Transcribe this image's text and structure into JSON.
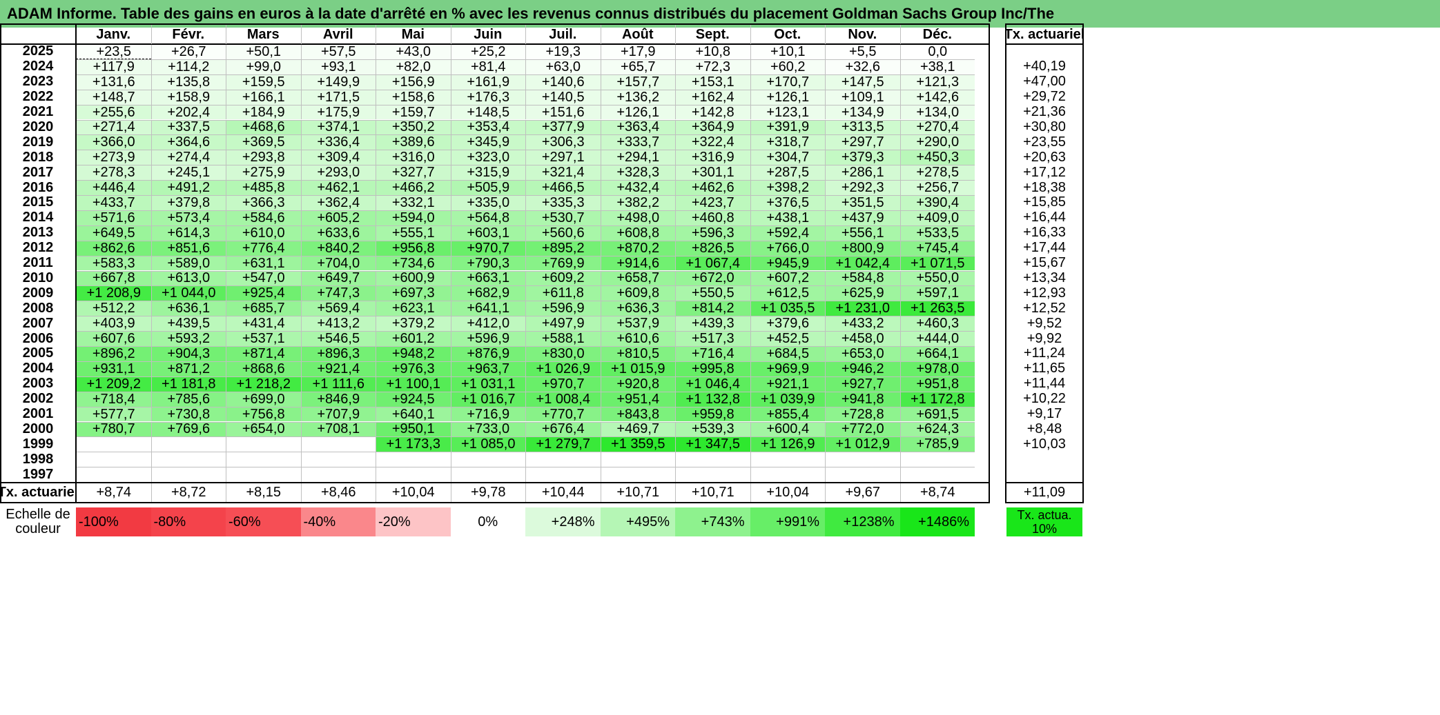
{
  "title": "ADAM Informe. Table des gains en euros à la date d'arrêté en % avec les revenus connus distribués du placement Goldman Sachs Group Inc/The",
  "months": [
    "Janv.",
    "Févr.",
    "Mars",
    "Avril",
    "Mai",
    "Juin",
    "Juil.",
    "Août",
    "Sept.",
    "Oct.",
    "Nov.",
    "Déc."
  ],
  "annual_header": "Tx. actuariel",
  "rows": [
    {
      "year": "2025",
      "values": [
        "+23,5",
        "+26,7",
        "+50,1",
        "+57,5",
        "+43,0",
        "+25,2",
        "+19,3",
        "+17,9",
        "+10,8",
        "+10,1",
        "+5,5",
        "0,0"
      ],
      "annual": ""
    },
    {
      "year": "2024",
      "values": [
        "+117,9",
        "+114,2",
        "+99,0",
        "+93,1",
        "+82,0",
        "+81,4",
        "+63,0",
        "+65,7",
        "+72,3",
        "+60,2",
        "+32,6",
        "+38,1"
      ],
      "annual": "+40,19"
    },
    {
      "year": "2023",
      "values": [
        "+131,6",
        "+135,8",
        "+159,5",
        "+149,9",
        "+156,9",
        "+161,9",
        "+140,6",
        "+157,7",
        "+153,1",
        "+170,7",
        "+147,5",
        "+121,3"
      ],
      "annual": "+47,00"
    },
    {
      "year": "2022",
      "values": [
        "+148,7",
        "+158,9",
        "+166,1",
        "+171,5",
        "+158,6",
        "+176,3",
        "+140,5",
        "+136,2",
        "+162,4",
        "+126,1",
        "+109,1",
        "+142,6"
      ],
      "annual": "+29,72"
    },
    {
      "year": "2021",
      "values": [
        "+255,6",
        "+202,4",
        "+184,9",
        "+175,9",
        "+159,7",
        "+148,5",
        "+151,6",
        "+126,1",
        "+142,8",
        "+123,1",
        "+134,9",
        "+134,0"
      ],
      "annual": "+21,36"
    },
    {
      "year": "2020",
      "values": [
        "+271,4",
        "+337,5",
        "+468,6",
        "+374,1",
        "+350,2",
        "+353,4",
        "+377,9",
        "+363,4",
        "+364,9",
        "+391,9",
        "+313,5",
        "+270,4"
      ],
      "annual": "+30,80"
    },
    {
      "year": "2019",
      "values": [
        "+366,0",
        "+364,6",
        "+369,5",
        "+336,4",
        "+389,6",
        "+345,9",
        "+306,3",
        "+333,7",
        "+322,4",
        "+318,7",
        "+297,7",
        "+290,0"
      ],
      "annual": "+23,55"
    },
    {
      "year": "2018",
      "values": [
        "+273,9",
        "+274,4",
        "+293,8",
        "+309,4",
        "+316,0",
        "+323,0",
        "+297,1",
        "+294,1",
        "+316,9",
        "+304,7",
        "+379,3",
        "+450,3"
      ],
      "annual": "+20,63"
    },
    {
      "year": "2017",
      "values": [
        "+278,3",
        "+245,1",
        "+275,9",
        "+293,0",
        "+327,7",
        "+315,9",
        "+321,4",
        "+328,3",
        "+301,1",
        "+287,5",
        "+286,1",
        "+278,5"
      ],
      "annual": "+17,12"
    },
    {
      "year": "2016",
      "values": [
        "+446,4",
        "+491,2",
        "+485,8",
        "+462,1",
        "+466,2",
        "+505,9",
        "+466,5",
        "+432,4",
        "+462,6",
        "+398,2",
        "+292,3",
        "+256,7"
      ],
      "annual": "+18,38"
    },
    {
      "year": "2015",
      "values": [
        "+433,7",
        "+379,8",
        "+366,3",
        "+362,4",
        "+332,1",
        "+335,0",
        "+335,3",
        "+382,2",
        "+423,7",
        "+376,5",
        "+351,5",
        "+390,4"
      ],
      "annual": "+15,85"
    },
    {
      "year": "2014",
      "values": [
        "+571,6",
        "+573,4",
        "+584,6",
        "+605,2",
        "+594,0",
        "+564,8",
        "+530,7",
        "+498,0",
        "+460,8",
        "+438,1",
        "+437,9",
        "+409,0"
      ],
      "annual": "+16,44"
    },
    {
      "year": "2013",
      "values": [
        "+649,5",
        "+614,3",
        "+610,0",
        "+633,6",
        "+555,1",
        "+603,1",
        "+560,6",
        "+608,8",
        "+596,3",
        "+592,4",
        "+556,1",
        "+533,5"
      ],
      "annual": "+16,33"
    },
    {
      "year": "2012",
      "values": [
        "+862,6",
        "+851,6",
        "+776,4",
        "+840,2",
        "+956,8",
        "+970,7",
        "+895,2",
        "+870,2",
        "+826,5",
        "+766,0",
        "+800,9",
        "+745,4"
      ],
      "annual": "+17,44"
    },
    {
      "year": "2011",
      "values": [
        "+583,3",
        "+589,0",
        "+631,1",
        "+704,0",
        "+734,6",
        "+790,3",
        "+769,9",
        "+914,6",
        "+1 067,4",
        "+945,9",
        "+1 042,4",
        "+1 071,5"
      ],
      "annual": "+15,67"
    },
    {
      "year": "2010",
      "values": [
        "+667,8",
        "+613,0",
        "+547,0",
        "+649,7",
        "+600,9",
        "+663,1",
        "+609,2",
        "+658,7",
        "+672,0",
        "+607,2",
        "+584,8",
        "+550,0"
      ],
      "annual": "+13,34"
    },
    {
      "year": "2009",
      "values": [
        "+1 208,9",
        "+1 044,0",
        "+925,4",
        "+747,3",
        "+697,3",
        "+682,9",
        "+611,8",
        "+609,8",
        "+550,5",
        "+612,5",
        "+625,9",
        "+597,1"
      ],
      "annual": "+12,93"
    },
    {
      "year": "2008",
      "values": [
        "+512,2",
        "+636,1",
        "+685,7",
        "+569,4",
        "+623,1",
        "+641,1",
        "+596,9",
        "+636,3",
        "+814,2",
        "+1 035,5",
        "+1 231,0",
        "+1 263,5"
      ],
      "annual": "+12,52"
    },
    {
      "year": "2007",
      "values": [
        "+403,9",
        "+439,5",
        "+431,4",
        "+413,2",
        "+379,2",
        "+412,0",
        "+497,9",
        "+537,9",
        "+439,3",
        "+379,6",
        "+433,2",
        "+460,3"
      ],
      "annual": "+9,52"
    },
    {
      "year": "2006",
      "values": [
        "+607,6",
        "+593,2",
        "+537,1",
        "+546,5",
        "+601,2",
        "+596,9",
        "+588,1",
        "+610,6",
        "+517,3",
        "+452,5",
        "+458,0",
        "+444,0"
      ],
      "annual": "+9,92"
    },
    {
      "year": "2005",
      "values": [
        "+896,2",
        "+904,3",
        "+871,4",
        "+896,3",
        "+948,2",
        "+876,9",
        "+830,0",
        "+810,5",
        "+716,4",
        "+684,5",
        "+653,0",
        "+664,1"
      ],
      "annual": "+11,24"
    },
    {
      "year": "2004",
      "values": [
        "+931,1",
        "+871,2",
        "+868,6",
        "+921,4",
        "+976,3",
        "+963,7",
        "+1 026,9",
        "+1 015,9",
        "+995,8",
        "+969,9",
        "+946,2",
        "+978,0"
      ],
      "annual": "+11,65"
    },
    {
      "year": "2003",
      "values": [
        "+1 209,2",
        "+1 181,8",
        "+1 218,2",
        "+1 111,6",
        "+1 100,1",
        "+1 031,1",
        "+970,7",
        "+920,8",
        "+1 046,4",
        "+921,1",
        "+927,7",
        "+951,8"
      ],
      "annual": "+11,44"
    },
    {
      "year": "2002",
      "values": [
        "+718,4",
        "+785,6",
        "+699,0",
        "+846,9",
        "+924,5",
        "+1 016,7",
        "+1 008,4",
        "+951,4",
        "+1 132,8",
        "+1 039,9",
        "+941,8",
        "+1 172,8"
      ],
      "annual": "+10,22"
    },
    {
      "year": "2001",
      "values": [
        "+577,7",
        "+730,8",
        "+756,8",
        "+707,9",
        "+640,1",
        "+716,9",
        "+770,7",
        "+843,8",
        "+959,8",
        "+855,4",
        "+728,8",
        "+691,5"
      ],
      "annual": "+9,17"
    },
    {
      "year": "2000",
      "values": [
        "+780,7",
        "+769,6",
        "+654,0",
        "+708,1",
        "+950,1",
        "+733,0",
        "+676,4",
        "+469,7",
        "+539,3",
        "+600,4",
        "+772,0",
        "+624,3"
      ],
      "annual": "+8,48"
    },
    {
      "year": "1999",
      "values": [
        "",
        "",
        "",
        "",
        "+1 173,3",
        "+1 085,0",
        "+1 279,7",
        "+1 359,5",
        "+1 347,5",
        "+1 126,9",
        "+1 012,9",
        "+785,9"
      ],
      "annual": "+10,03"
    },
    {
      "year": "1998",
      "values": [
        "",
        "",
        "",
        "",
        "",
        "",
        "",
        "",
        "",
        "",
        "",
        ""
      ],
      "annual": ""
    },
    {
      "year": "1997",
      "values": [
        "",
        "",
        "",
        "",
        "",
        "",
        "",
        "",
        "",
        "",
        "",
        ""
      ],
      "annual": ""
    }
  ],
  "totals": {
    "label": "Tx. actuariel",
    "values": [
      "+8,74",
      "+8,72",
      "+8,15",
      "+8,46",
      "+10,04",
      "+9,78",
      "+10,44",
      "+10,71",
      "+10,71",
      "+10,04",
      "+9,67",
      "+8,74"
    ],
    "annual": "+11,09"
  },
  "scale": {
    "label": "Echelle de couleur",
    "items": [
      {
        "label": "-100%",
        "color": "#f23a42"
      },
      {
        "label": "-80%",
        "color": "#f4434b"
      },
      {
        "label": "-60%",
        "color": "#f64e55"
      },
      {
        "label": "-40%",
        "color": "#fa878b"
      },
      {
        "label": "-20%",
        "color": "#fdc4c6"
      },
      {
        "label": "0%",
        "color": "#ffffff"
      },
      {
        "label": "+248%",
        "color": "#dcfadc"
      },
      {
        "label": "+495%",
        "color": "#b5f6b5"
      },
      {
        "label": "+743%",
        "color": "#8ef28e"
      },
      {
        "label": "+991%",
        "color": "#67ee67"
      },
      {
        "label": "+1238%",
        "color": "#40ea40"
      },
      {
        "label": "+1486%",
        "color": "#19e619"
      }
    ],
    "annual_label": "Tx. actua. 10%",
    "annual_color": "#19e619"
  },
  "colors": {
    "title_bg": "#7bcf86",
    "positive_max": "#19e619"
  }
}
